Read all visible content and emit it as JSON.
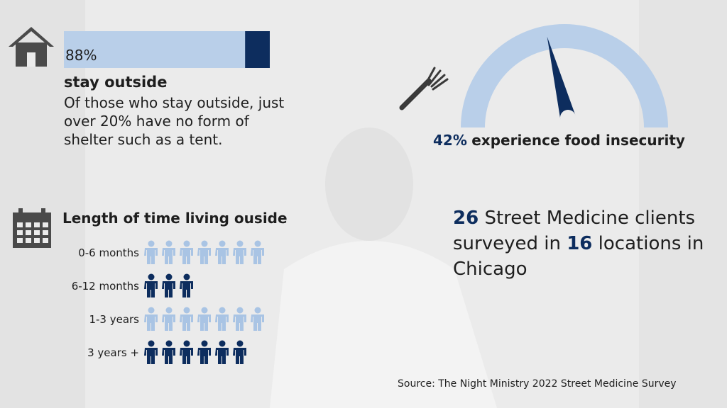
{
  "chart_data": [
    {
      "type": "bar",
      "categories": [
        "stay outside"
      ],
      "values": [
        88
      ],
      "value_labels": [
        "88%"
      ],
      "xlim": [
        0,
        100
      ],
      "color": "#b9cfe9",
      "caption": "Of those who stay outside, just over 20% have no form of shelter such as a tent."
    },
    {
      "type": "gauge",
      "values": [
        42
      ],
      "value_labels": [
        "42%"
      ],
      "xlim": [
        0,
        100
      ],
      "color": "#b9cfe9",
      "title": "experience food insecurity"
    },
    {
      "type": "pictogram",
      "title": "Length of time living ouside",
      "categories": [
        "0-6 months",
        "6-12 months",
        "1-3 years",
        "3 years +"
      ],
      "values": [
        7,
        3,
        7,
        6
      ],
      "colors": [
        "#a9c4e4",
        "#0d2d5e",
        "#a9c4e4",
        "#0d2d5e"
      ]
    }
  ],
  "summary": {
    "clients": 26,
    "text_1": "Street Medicine clients surveyed in",
    "locations": 16,
    "text_2": "locations in Chicago"
  },
  "source": "Source: The Night Ministry 2022 Street Medicine Survey"
}
